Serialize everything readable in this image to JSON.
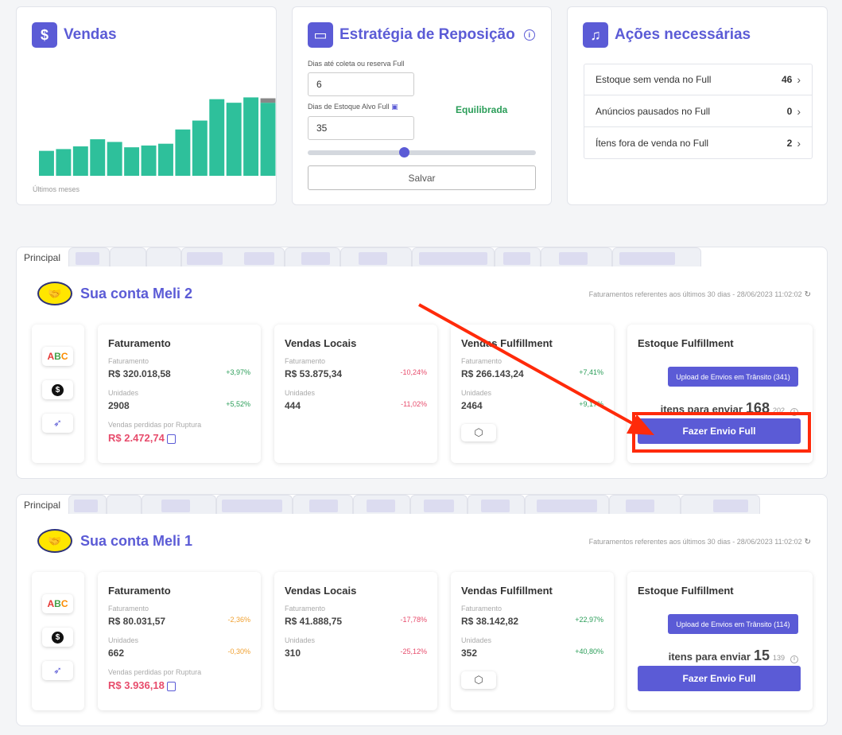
{
  "vendas": {
    "title": "Vendas",
    "icon": "dollar-icon",
    "caption": "Últimos meses",
    "chart_data": {
      "type": "bar",
      "values": [
        28,
        30,
        33,
        41,
        38,
        32,
        34,
        36,
        52,
        62,
        86,
        82,
        88,
        82
      ],
      "extra_top": [
        0,
        0,
        0,
        0,
        0,
        0,
        0,
        0,
        0,
        0,
        0,
        0,
        0,
        5
      ],
      "ylim": [
        0,
        100
      ],
      "colors": {
        "bar": "#2ec09b",
        "extra": "#888888"
      }
    }
  },
  "estrategia": {
    "title": "Estratégia de Reposição",
    "label1": "Dias até coleta ou reserva Full",
    "value1": "6",
    "label2": "Dias de Estoque Alvo Full",
    "value2": "35",
    "balance": "Equilibrada",
    "slider": 0.42,
    "save": "Salvar"
  },
  "acoes": {
    "title": "Ações necessárias",
    "rows": [
      {
        "label": "Estoque sem venda no Full",
        "count": "46"
      },
      {
        "label": "Anúncios pausados no Full",
        "count": "0"
      },
      {
        "label": "Ítens fora de venda no Full",
        "count": "2"
      }
    ]
  },
  "accounts": [
    {
      "tab": "Principal",
      "name": "Sua conta Meli 2",
      "note": "Faturamentos referentes aos últimos 30 dias - 28/06/2023 11:02:02",
      "faturamento": {
        "title": "Faturamento",
        "l1": "Faturamento",
        "v1": "R$ 320.018,58",
        "c1": "+3,97%",
        "l2": "Unidades",
        "v2": "2908",
        "c2": "+5,52%",
        "l3": "Vendas perdidas por Ruptura",
        "v3": "R$ 2.472,74"
      },
      "locais": {
        "title": "Vendas Locais",
        "l1": "Faturamento",
        "v1": "R$ 53.875,34",
        "c1": "-10,24%",
        "l2": "Unidades",
        "v2": "444",
        "c2": "-11,02%"
      },
      "fulfillment": {
        "title": "Vendas Fulfillment",
        "l1": "Faturamento",
        "v1": "R$ 266.143,24",
        "c1": "+7,41%",
        "l2": "Unidades",
        "v2": "2464",
        "c2": "+9,17%"
      },
      "estoque": {
        "title": "Estoque Fulfillment",
        "upload": "Upload de Envios em Trânsito (341)",
        "items_label": "itens para enviar",
        "items_count": "168",
        "items_small": "202",
        "button": "Fazer Envio Full"
      }
    },
    {
      "tab": "Principal",
      "name": "Sua conta Meli 1",
      "note": "Faturamentos referentes aos últimos 30 dias - 28/06/2023 11:02:02",
      "faturamento": {
        "title": "Faturamento",
        "l1": "Faturamento",
        "v1": "R$ 80.031,57",
        "c1": "-2,36%",
        "l2": "Unidades",
        "v2": "662",
        "c2": "-0,30%",
        "l3": "Vendas perdidas por Ruptura",
        "v3": "R$ 3.936,18"
      },
      "locais": {
        "title": "Vendas Locais",
        "l1": "Faturamento",
        "v1": "R$ 41.888,75",
        "c1": "-17,78%",
        "l2": "Unidades",
        "v2": "310",
        "c2": "-25,12%"
      },
      "fulfillment": {
        "title": "Vendas Fulfillment",
        "l1": "Faturamento",
        "v1": "R$ 38.142,82",
        "c1": "+22,97%",
        "l2": "Unidades",
        "v2": "352",
        "c2": "+40,80%"
      },
      "estoque": {
        "title": "Estoque Fulfillment",
        "upload": "Upload de Envios em Trânsito (114)",
        "items_label": "itens para enviar",
        "items_count": "15",
        "items_small": "139",
        "button": "Fazer Envio Full"
      }
    }
  ],
  "side_icons": {
    "abc_a": "A",
    "abc_b": "B",
    "abc_c": "C",
    "coin": "$"
  },
  "colors": {
    "accent": "#5b5bd6",
    "positive": "#2a9d58",
    "negative": "#e74c6c",
    "annotation": "#ff2a0a"
  }
}
